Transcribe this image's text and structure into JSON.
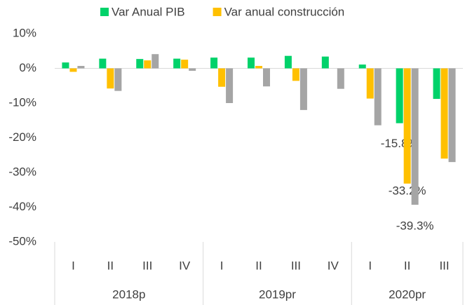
{
  "chart_data": {
    "type": "bar",
    "groups": [
      {
        "name": "2018p",
        "categories": [
          "I",
          "II",
          "III",
          "IV"
        ]
      },
      {
        "name": "2019pr",
        "categories": [
          "I",
          "II",
          "III",
          "IV"
        ]
      },
      {
        "name": "2020pr",
        "categories": [
          "I",
          "II",
          "III"
        ]
      }
    ],
    "series": [
      {
        "name": "Var Anual PIB",
        "color": "#00d26a",
        "values": [
          1.7,
          2.8,
          2.7,
          2.8,
          3.1,
          3.1,
          3.6,
          3.4,
          1.1,
          -15.8,
          -8.8
        ],
        "value_labels": [
          null,
          null,
          null,
          null,
          null,
          null,
          null,
          null,
          null,
          "-15.8%",
          null
        ]
      },
      {
        "name": "Var anual construcción",
        "color": "#ffc000",
        "values": [
          -1.0,
          -5.8,
          2.3,
          2.5,
          -5.3,
          0.7,
          -3.6,
          null,
          -8.7,
          -33.2,
          -26.0
        ],
        "value_labels": [
          null,
          null,
          null,
          null,
          null,
          null,
          null,
          null,
          null,
          "-33.2%",
          null
        ]
      },
      {
        "color": "#a5a5a5",
        "values": [
          0.7,
          -6.5,
          4.1,
          -0.7,
          -10.0,
          -5.2,
          -12.0,
          -5.9,
          -16.4,
          -39.3,
          -27.0
        ],
        "value_labels": [
          null,
          null,
          null,
          null,
          null,
          null,
          null,
          null,
          null,
          "-39.3%",
          null
        ]
      }
    ],
    "ylim": [
      -50,
      10
    ],
    "yticks": [
      {
        "value": -50,
        "label": "-50%"
      },
      {
        "value": -40,
        "label": "-40%"
      },
      {
        "value": -30,
        "label": "-30%"
      },
      {
        "value": -20,
        "label": "-20%"
      },
      {
        "value": -10,
        "label": "-10%"
      },
      {
        "value": 0,
        "label": "0%"
      },
      {
        "value": 10,
        "label": "10%"
      }
    ]
  }
}
